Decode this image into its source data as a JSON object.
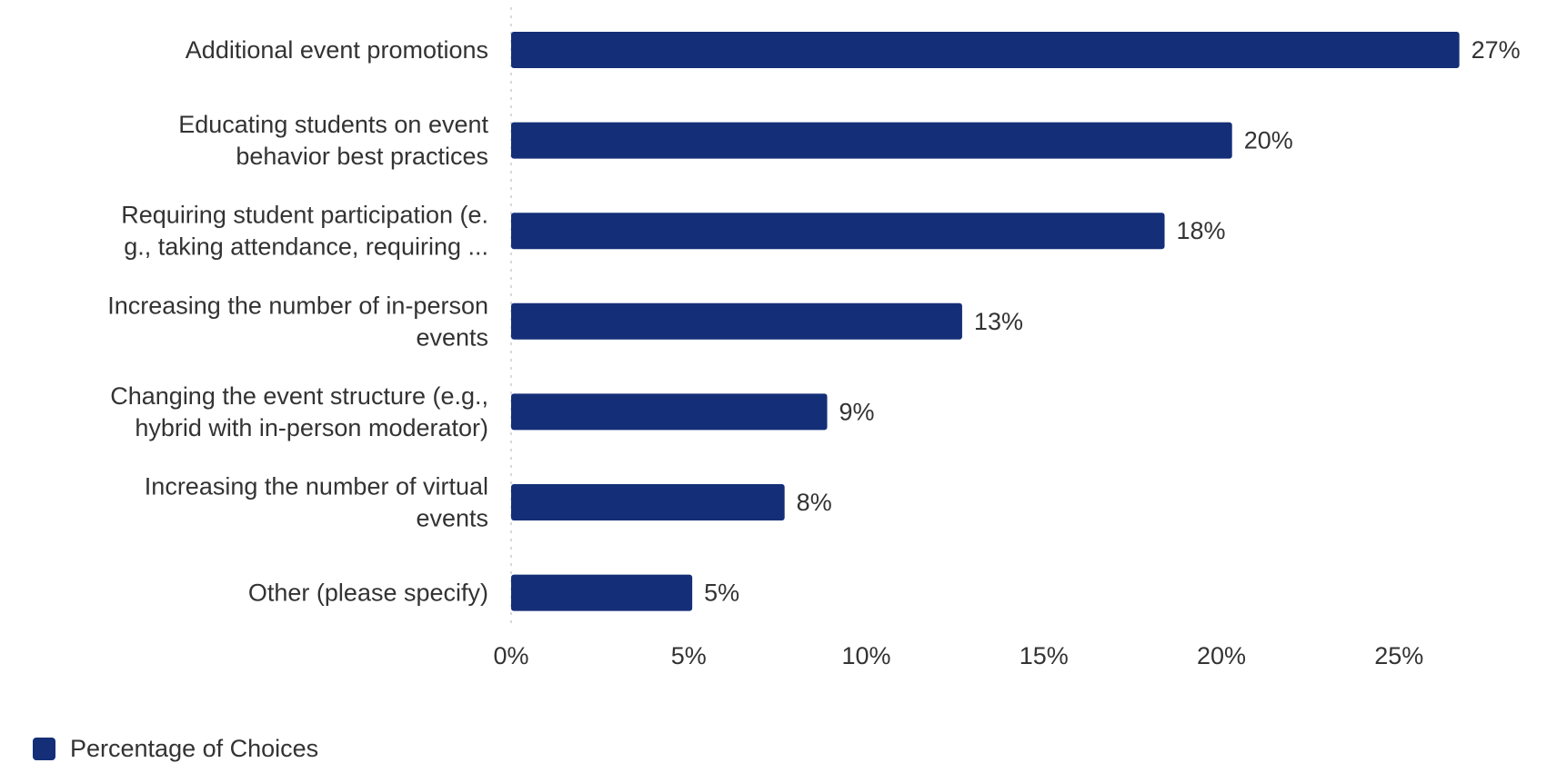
{
  "colors": {
    "bar": "#142f78",
    "text": "#333333",
    "axis_line": "#d9d9d9"
  },
  "chart_data": {
    "type": "bar",
    "orientation": "horizontal",
    "categories": [
      "Additional event promotions",
      "Educating students on event behavior best practices",
      "Requiring student participation (e.g., taking attendance, requiring ...",
      "Increasing the number of in-person events",
      "Changing the event structure (e.g., hybrid with in-person moderator)",
      "Increasing the number of virtual events",
      "Other (please specify)"
    ],
    "category_label_lines": [
      [
        "Additional event promotions"
      ],
      [
        "Educating students on event",
        "behavior best practices"
      ],
      [
        "Requiring student participation (e.",
        "g., taking attendance, requiring ..."
      ],
      [
        "Increasing the number of in-person",
        "events"
      ],
      [
        "Changing the event structure (e.g.,",
        "hybrid with in-person moderator)"
      ],
      [
        "Increasing the number of virtual",
        "events"
      ],
      [
        "Other (please specify)"
      ]
    ],
    "series": [
      {
        "name": "Percentage of Choices",
        "values": [
          26.7,
          20.3,
          18.4,
          12.7,
          8.9,
          7.7,
          5.1
        ],
        "data_labels": [
          "27%",
          "20%",
          "18%",
          "13%",
          "9%",
          "8%",
          "5%"
        ]
      }
    ],
    "xlim": [
      0,
      30
    ],
    "xticks": [
      0,
      5,
      10,
      15,
      20,
      25
    ],
    "xtick_labels": [
      "0%",
      "5%",
      "10%",
      "15%",
      "20%",
      "25%"
    ],
    "legend_position": "bottom-left",
    "grid": false
  },
  "legend": {
    "label": "Percentage of Choices"
  }
}
